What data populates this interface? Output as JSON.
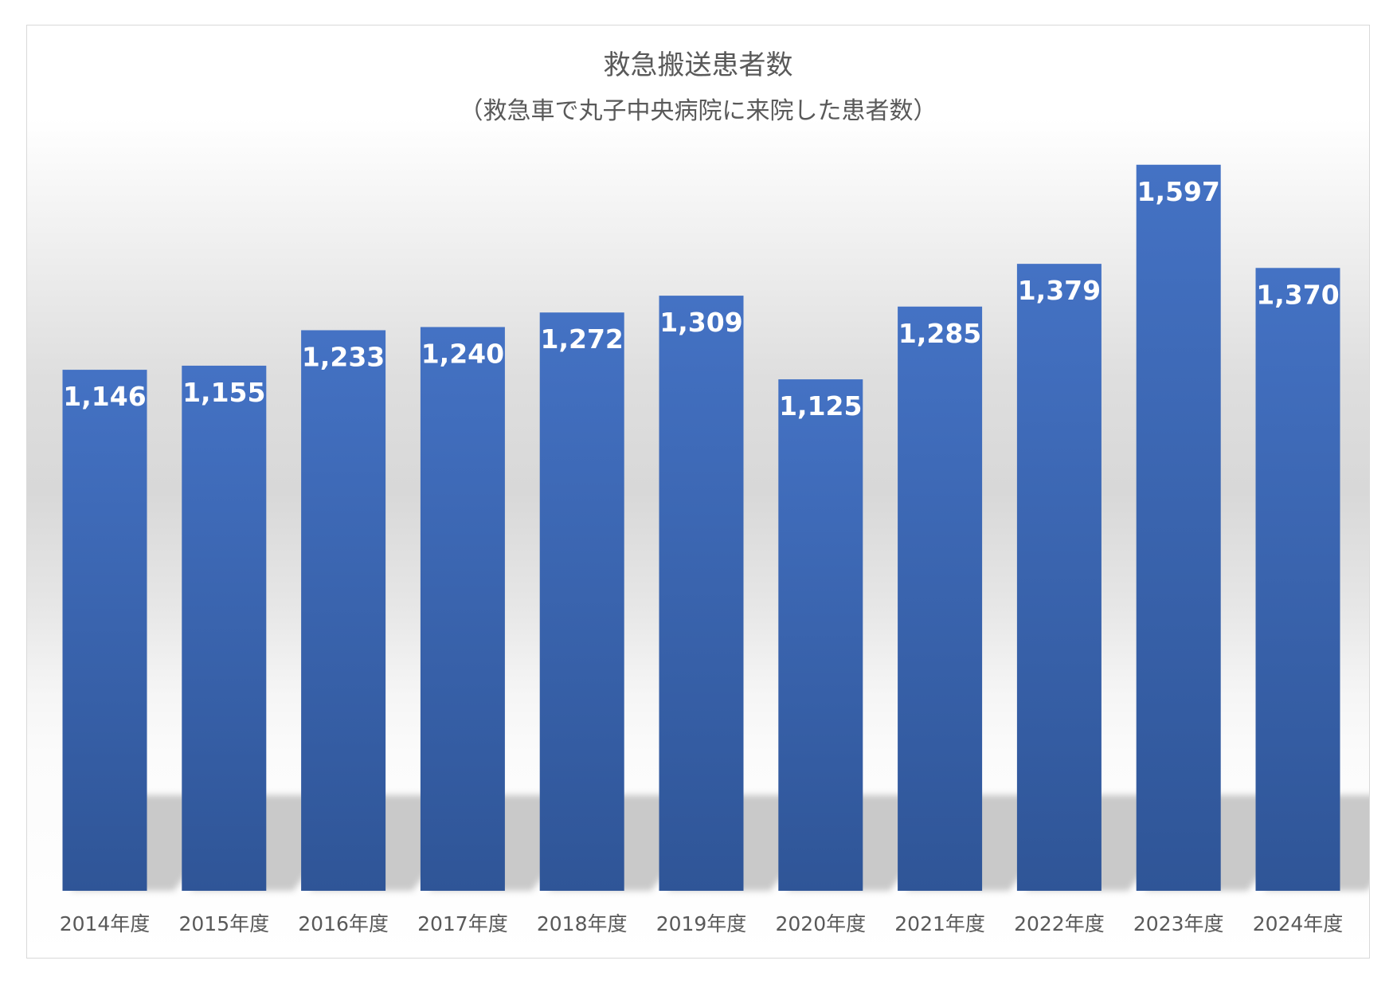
{
  "chart_data": {
    "type": "bar",
    "title": "救急搬送患者数",
    "subtitle": "（救急車で丸子中央病院に来院した患者数）",
    "categories": [
      "2014年度",
      "2015年度",
      "2016年度",
      "2017年度",
      "2018年度",
      "2019年度",
      "2020年度",
      "2021年度",
      "2022年度",
      "2023年度",
      "2024年度"
    ],
    "values": [
      1146,
      1155,
      1233,
      1240,
      1272,
      1309,
      1125,
      1285,
      1379,
      1597,
      1370
    ],
    "value_labels": [
      "1,146",
      "1,155",
      "1,233",
      "1,240",
      "1,272",
      "1,309",
      "1,125",
      "1,285",
      "1,379",
      "1,597",
      "1,370"
    ],
    "xlabel": "",
    "ylabel": "",
    "ylim": [
      0,
      1700
    ],
    "grid": false,
    "legend": "none",
    "bar_color": "#4472c4"
  }
}
